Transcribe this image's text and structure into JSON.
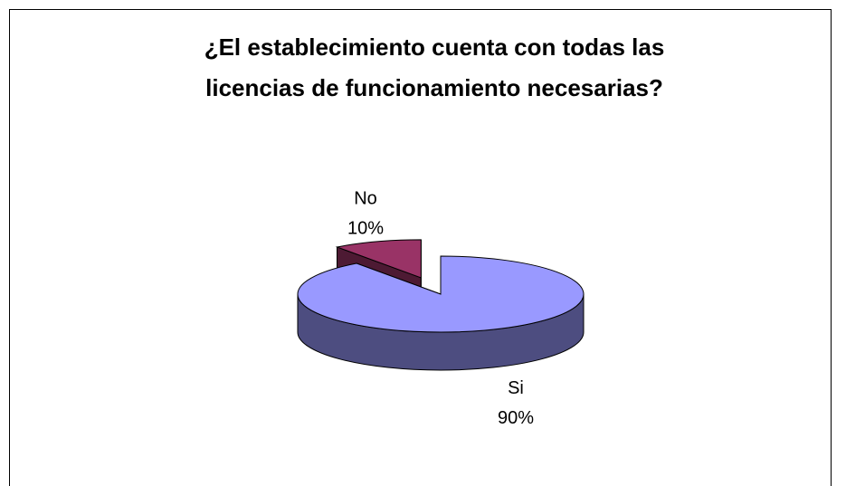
{
  "chart_data": {
    "type": "pie",
    "title": "¿El establecimiento cuenta con todas las licencias de funcionamiento necesarias?",
    "categories": [
      "Si",
      "No"
    ],
    "values": [
      90,
      10
    ],
    "value_labels": [
      "90%",
      "10%"
    ],
    "colors": [
      "#9999ff",
      "#993366"
    ]
  }
}
